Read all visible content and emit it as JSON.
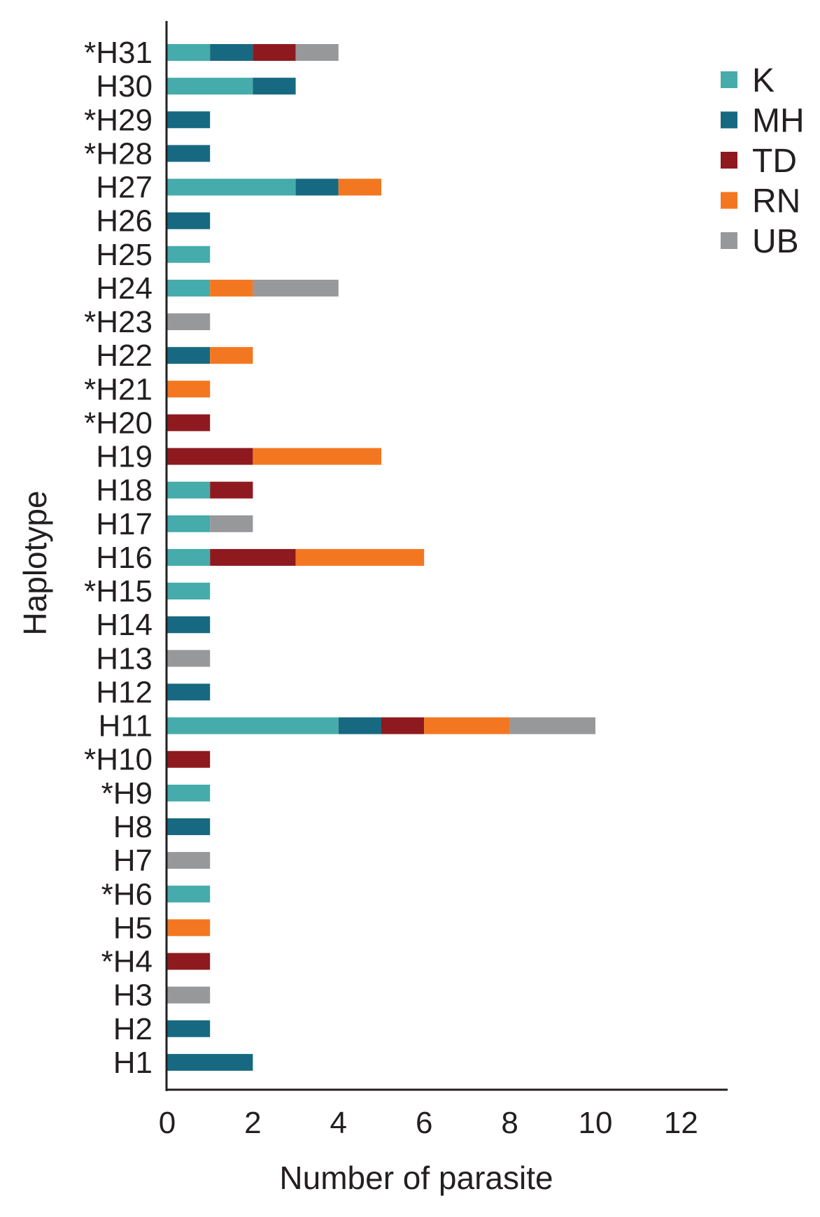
{
  "chart_data": {
    "type": "bar",
    "orientation": "horizontal",
    "stacked": true,
    "title": "",
    "xlabel": "Number of parasite",
    "ylabel": "Haplotype",
    "xlim": [
      0,
      13
    ],
    "xticks": [
      0,
      2,
      4,
      6,
      8,
      10,
      12
    ],
    "grid": false,
    "legend_position": "top-right",
    "categories": [
      "H1",
      "H2",
      "H3",
      "*H4",
      "H5",
      "*H6",
      "H7",
      "H8",
      "*H9",
      "*H10",
      "H11",
      "H12",
      "H13",
      "H14",
      "*H15",
      "H16",
      "H17",
      "H18",
      "H19",
      "*H20",
      "*H21",
      "H22",
      "*H23",
      "H24",
      "H25",
      "H26",
      "H27",
      "*H28",
      "*H29",
      "H30",
      "*H31"
    ],
    "series": [
      {
        "name": "K",
        "color": "#45abab",
        "values": [
          0,
          0,
          0,
          0,
          0,
          1,
          0,
          0,
          1,
          0,
          4,
          0,
          0,
          0,
          1,
          1,
          1,
          1,
          0,
          0,
          0,
          0,
          0,
          1,
          1,
          0,
          3,
          0,
          0,
          2,
          1
        ]
      },
      {
        "name": "MH",
        "color": "#176981",
        "values": [
          2,
          1,
          0,
          0,
          0,
          0,
          0,
          1,
          0,
          0,
          1,
          1,
          0,
          1,
          0,
          0,
          0,
          0,
          0,
          0,
          0,
          1,
          0,
          0,
          0,
          1,
          1,
          1,
          1,
          1,
          1
        ]
      },
      {
        "name": "TD",
        "color": "#8e1a1f",
        "values": [
          0,
          0,
          0,
          1,
          0,
          0,
          0,
          0,
          0,
          1,
          1,
          0,
          0,
          0,
          0,
          2,
          0,
          1,
          2,
          1,
          0,
          0,
          0,
          0,
          0,
          0,
          0,
          0,
          0,
          0,
          1
        ]
      },
      {
        "name": "RN",
        "color": "#f37721",
        "values": [
          0,
          0,
          0,
          0,
          1,
          0,
          0,
          0,
          0,
          0,
          2,
          0,
          0,
          0,
          0,
          3,
          0,
          0,
          3,
          0,
          1,
          1,
          0,
          1,
          0,
          0,
          1,
          0,
          0,
          0,
          0
        ]
      },
      {
        "name": "UB",
        "color": "#97989a",
        "values": [
          0,
          0,
          1,
          0,
          0,
          0,
          1,
          0,
          0,
          0,
          2,
          0,
          1,
          0,
          0,
          0,
          1,
          0,
          0,
          0,
          0,
          0,
          1,
          2,
          0,
          0,
          0,
          0,
          0,
          0,
          1
        ]
      }
    ]
  }
}
